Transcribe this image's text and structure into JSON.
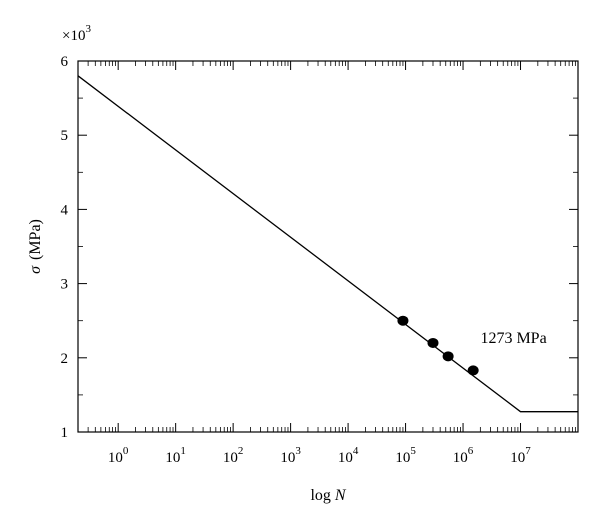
{
  "chart_data": {
    "type": "line",
    "title": "",
    "xlabel": {
      "base": "log",
      "italic": "N"
    },
    "ylabel": {
      "italic": "σ",
      "rest": "(MPa)"
    },
    "y_multiplier": {
      "prefix": "×10",
      "exp": "3"
    },
    "x_scale": "log",
    "xlim": [
      0.2,
      100000000
    ],
    "ylim": [
      1,
      6
    ],
    "x_ticks": [
      {
        "base": "10",
        "exp": "0",
        "value": 1
      },
      {
        "base": "10",
        "exp": "1",
        "value": 10
      },
      {
        "base": "10",
        "exp": "2",
        "value": 100
      },
      {
        "base": "10",
        "exp": "3",
        "value": 1000
      },
      {
        "base": "10",
        "exp": "4",
        "value": 10000
      },
      {
        "base": "10",
        "exp": "5",
        "value": 100000
      },
      {
        "base": "10",
        "exp": "6",
        "value": 1000000
      },
      {
        "base": "10",
        "exp": "7",
        "value": 10000000
      }
    ],
    "y_ticks": [
      {
        "label": "1",
        "value": 1
      },
      {
        "label": "2",
        "value": 2
      },
      {
        "label": "3",
        "value": 3
      },
      {
        "label": "4",
        "value": 4
      },
      {
        "label": "5",
        "value": 5
      },
      {
        "label": "6",
        "value": 6
      }
    ],
    "series": [
      {
        "type": "line",
        "x": [
          0.2,
          10000000,
          100000000
        ],
        "y": [
          5.8,
          1.273,
          1.273
        ],
        "color": "#000000"
      },
      {
        "type": "scatter",
        "x": [
          90000,
          300000,
          550000,
          1500000
        ],
        "y": [
          2.5,
          2.2,
          2.02,
          1.83
        ],
        "color": "#000000"
      }
    ],
    "annotations": [
      {
        "text": "1273 MPa",
        "x": 3000000,
        "y": 2.27
      }
    ],
    "grid": false,
    "legend": "none"
  }
}
